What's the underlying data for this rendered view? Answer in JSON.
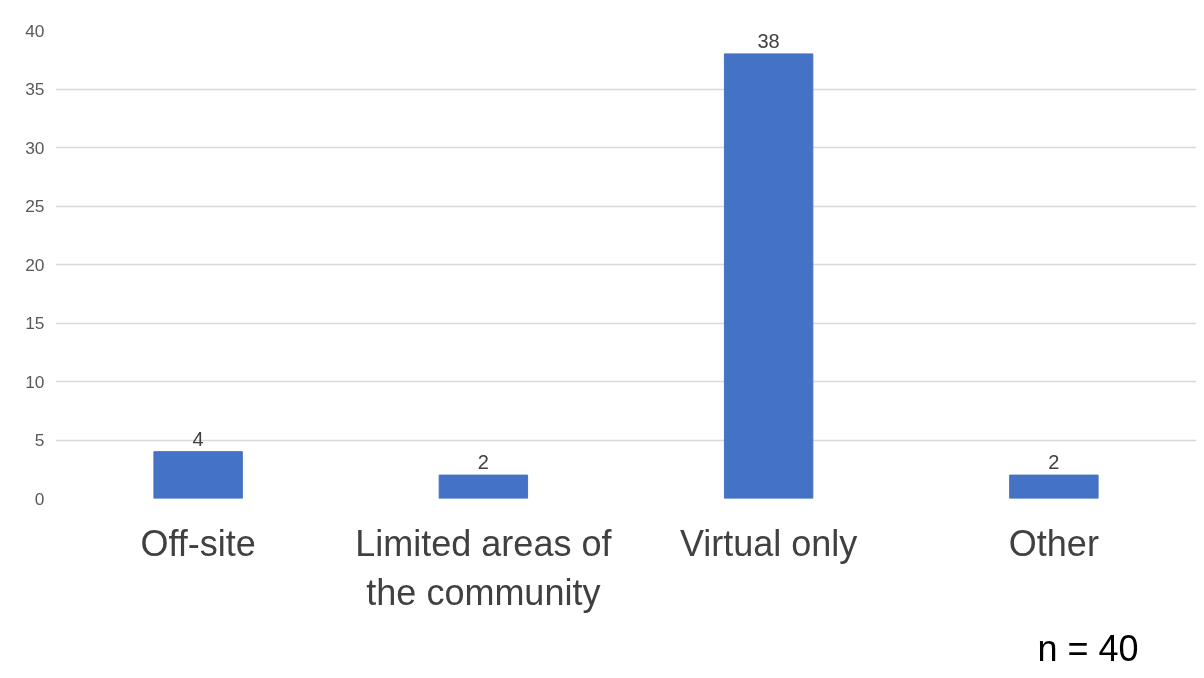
{
  "chart_data": {
    "type": "bar",
    "categories": [
      "Off-site",
      "Limited areas of the community",
      "Virtual only",
      "Other"
    ],
    "values": [
      4,
      2,
      38,
      2
    ],
    "color": "#4472c4",
    "ylim": [
      0,
      40
    ],
    "yticks": [
      0,
      5,
      10,
      15,
      20,
      25,
      30,
      35,
      40
    ],
    "grid": "y",
    "data_labels": true,
    "annotations": [
      "n = 40"
    ]
  }
}
